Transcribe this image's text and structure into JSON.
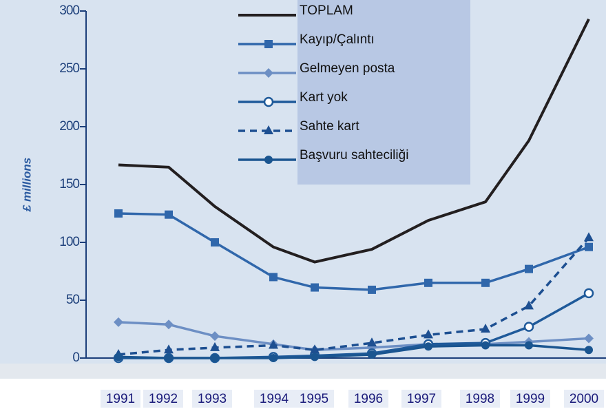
{
  "chart_data": {
    "type": "line",
    "y_label": "£ millions",
    "categories": [
      "1991",
      "1992",
      "1993",
      "1994",
      "1995",
      "1996",
      "1997",
      "1998",
      "1999",
      "2000"
    ],
    "ylim": [
      0,
      300
    ],
    "yticks": [
      0,
      50,
      100,
      150,
      200,
      250,
      300
    ],
    "series": [
      {
        "name": "TOPLAM",
        "color": "#231f20",
        "marker": "none",
        "dash": false,
        "values": [
          167,
          165,
          131,
          96,
          83,
          94,
          119,
          135,
          188,
          293
        ]
      },
      {
        "name": "Kayıp/Çalıntı",
        "color": "#3067ab",
        "marker": "square",
        "dash": false,
        "values": [
          125,
          124,
          100,
          70,
          61,
          59,
          65,
          65,
          77,
          96
        ]
      },
      {
        "name": "Gelmeyen posta",
        "color": "#6d8fc4",
        "marker": "diamond",
        "dash": false,
        "values": [
          31,
          29,
          19,
          12,
          7,
          9,
          12,
          12,
          14,
          17
        ]
      },
      {
        "name": "Kart yok",
        "color": "#1f5a9a",
        "marker": "open-circle",
        "dash": false,
        "values": [
          0,
          0,
          0,
          1,
          2,
          4,
          12,
          13,
          27,
          56
        ]
      },
      {
        "name": "Sahte kart",
        "color": "#1d4f91",
        "marker": "triangle",
        "dash": true,
        "values": [
          3,
          7,
          9,
          11,
          7,
          13,
          20,
          25,
          45,
          104
        ]
      },
      {
        "name": "Başvuru sahteciliği",
        "color": "#1a5590",
        "marker": "circle",
        "dash": false,
        "values": [
          1,
          0,
          0,
          0,
          1,
          3,
          10,
          11,
          11,
          7
        ]
      }
    ]
  }
}
